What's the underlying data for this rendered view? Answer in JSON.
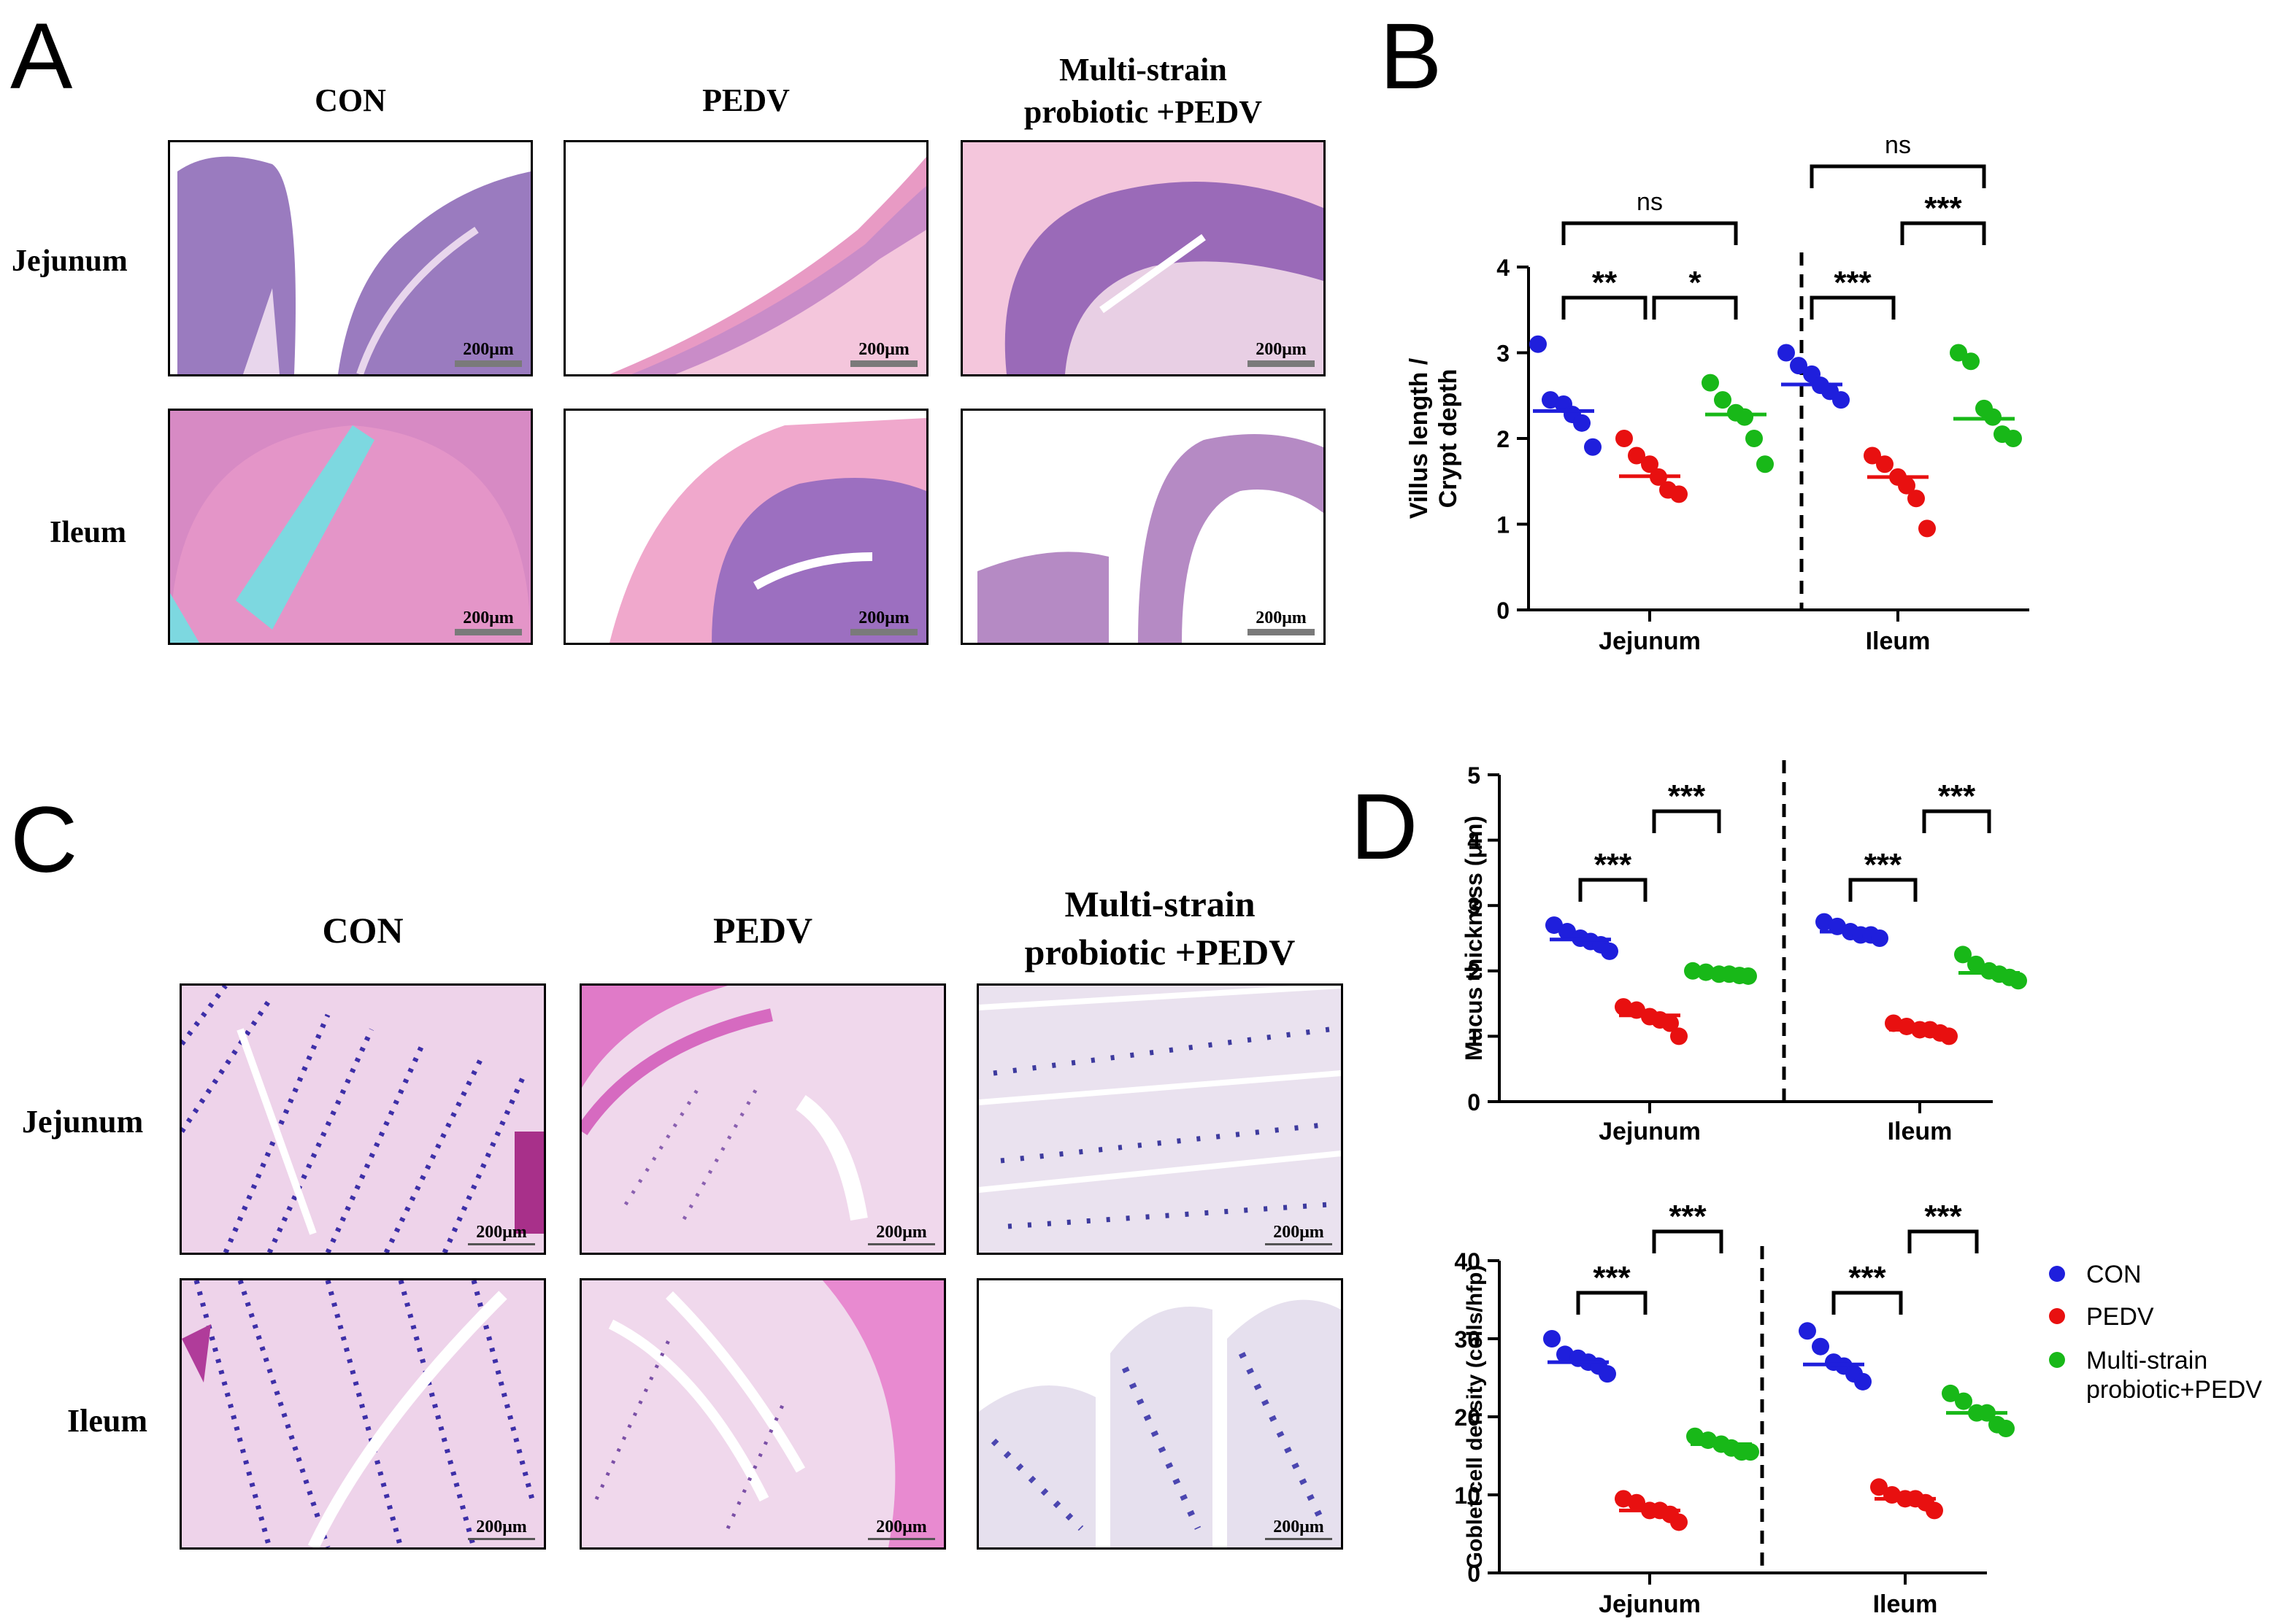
{
  "panels": {
    "A": "A",
    "B": "B",
    "C": "C",
    "D": "D"
  },
  "columns": [
    "CON",
    "PEDV",
    "Multi-strain probiotic +PEDV"
  ],
  "column_lines": [
    [
      "CON"
    ],
    [
      "PEDV"
    ],
    [
      "Multi-strain",
      "probiotic +PEDV"
    ]
  ],
  "rows": [
    "Jejunum",
    "Ileum"
  ],
  "scale_bar": "200μm",
  "colors": {
    "CON": "#1f1fdc",
    "PEDV": "#e81010",
    "probiotic": "#18b818",
    "he_stain": "#f4c6dc",
    "pas_stain": "#f3d7ec",
    "villus": "#8b63b0",
    "goblet": "#2b2b9a"
  },
  "icons": {
    "legend_marker": "filled-circle",
    "data_marker": "filled-circle",
    "median_marker": "horizontal-line"
  },
  "legend": {
    "placement": "right",
    "entries": [
      {
        "group": "CON",
        "lines": [
          "CON"
        ]
      },
      {
        "group": "PEDV",
        "lines": [
          "PEDV"
        ]
      },
      {
        "group": "probiotic",
        "lines": [
          "Multi-strain",
          "probiotic+PEDV"
        ]
      }
    ]
  },
  "chart_data": [
    {
      "id": "B",
      "type": "scatter",
      "ylabel_lines": [
        "Villus length /",
        "Crypt depth"
      ],
      "ylim": [
        0,
        4
      ],
      "yticks": [
        0,
        1,
        2,
        3,
        4
      ],
      "categories": [
        "Jejunum",
        "Ileum"
      ],
      "series": [
        {
          "group": "CON",
          "values": [
            [
              3.1,
              2.45,
              2.4,
              2.28,
              2.18,
              1.9
            ],
            [
              3.0,
              2.85,
              2.75,
              2.62,
              2.55,
              2.45
            ]
          ],
          "medians": [
            2.32,
            2.63
          ]
        },
        {
          "group": "PEDV",
          "values": [
            [
              2.0,
              1.8,
              1.7,
              1.55,
              1.4,
              1.35
            ],
            [
              1.8,
              1.7,
              1.55,
              1.45,
              1.3,
              0.95
            ]
          ],
          "medians": [
            1.56,
            1.55
          ]
        },
        {
          "group": "probiotic",
          "values": [
            [
              2.65,
              2.45,
              2.3,
              2.25,
              2.0,
              1.7
            ],
            [
              3.0,
              2.9,
              2.35,
              2.25,
              2.05,
              2.0
            ]
          ],
          "medians": [
            2.28,
            2.23
          ]
        }
      ],
      "comparisons": [
        {
          "category": 0,
          "from": 0,
          "to": 1,
          "label": "**",
          "level": 0
        },
        {
          "category": 0,
          "from": 1,
          "to": 2,
          "label": "*",
          "level": 0
        },
        {
          "category": 0,
          "from": 0,
          "to": 2,
          "label": "ns",
          "level": 1
        },
        {
          "category": 1,
          "from": 0,
          "to": 1,
          "label": "***",
          "level": 0
        },
        {
          "category": 1,
          "from": 1,
          "to": 2,
          "label": "***",
          "level": 1
        },
        {
          "category": 1,
          "from": 0,
          "to": 2,
          "label": "ns",
          "level": 2
        }
      ]
    },
    {
      "id": "D1",
      "type": "scatter",
      "ylabel_lines": [
        "Mucus thickness (μm)"
      ],
      "ylim": [
        0,
        5
      ],
      "yticks": [
        0,
        1,
        2,
        3,
        4,
        5
      ],
      "categories": [
        "Jejunum",
        "Ileum"
      ],
      "series": [
        {
          "group": "CON",
          "values": [
            [
              2.7,
              2.6,
              2.5,
              2.45,
              2.4,
              2.3
            ],
            [
              2.75,
              2.68,
              2.6,
              2.55,
              2.55,
              2.5
            ]
          ],
          "medians": [
            2.48,
            2.6
          ]
        },
        {
          "group": "PEDV",
          "values": [
            [
              1.45,
              1.4,
              1.3,
              1.25,
              1.2,
              1.0
            ],
            [
              1.2,
              1.15,
              1.1,
              1.1,
              1.05,
              1.0
            ]
          ],
          "medians": [
            1.32,
            1.1
          ]
        },
        {
          "group": "probiotic",
          "values": [
            [
              2.0,
              1.98,
              1.95,
              1.95,
              1.93,
              1.92
            ],
            [
              2.25,
              2.1,
              2.0,
              1.95,
              1.9,
              1.85
            ]
          ],
          "medians": [
            1.95,
            1.97
          ]
        }
      ],
      "comparisons": [
        {
          "category": 0,
          "from": 0,
          "to": 1,
          "label": "***",
          "level": 0
        },
        {
          "category": 0,
          "from": 1,
          "to": 2,
          "label": "***",
          "level": 1
        },
        {
          "category": 1,
          "from": 0,
          "to": 1,
          "label": "***",
          "level": 0
        },
        {
          "category": 1,
          "from": 1,
          "to": 2,
          "label": "***",
          "level": 1
        }
      ]
    },
    {
      "id": "D2",
      "type": "scatter",
      "ylabel_lines": [
        "Goblet cell density (cells/hfp)"
      ],
      "ylim": [
        0,
        40
      ],
      "yticks": [
        0,
        10,
        20,
        30,
        40
      ],
      "categories": [
        "Jejunum",
        "Ileum"
      ],
      "series": [
        {
          "group": "CON",
          "values": [
            [
              30.0,
              28.0,
              27.5,
              27.0,
              26.5,
              25.5
            ],
            [
              31.0,
              29.0,
              27.0,
              26.5,
              25.5,
              24.5
            ]
          ],
          "medians": [
            27.0,
            26.7
          ]
        },
        {
          "group": "PEDV",
          "values": [
            [
              9.5,
              9.0,
              8.0,
              8.0,
              7.5,
              6.5
            ],
            [
              11.0,
              10.0,
              9.5,
              9.5,
              9.0,
              8.0
            ]
          ],
          "medians": [
            8.0,
            9.5
          ]
        },
        {
          "group": "probiotic",
          "values": [
            [
              17.5,
              17.0,
              16.5,
              16.0,
              15.5,
              15.5
            ],
            [
              23.0,
              22.0,
              20.5,
              20.5,
              19.0,
              18.5
            ]
          ],
          "medians": [
            16.5,
            20.5
          ]
        }
      ],
      "comparisons": [
        {
          "category": 0,
          "from": 0,
          "to": 1,
          "label": "***",
          "level": 0
        },
        {
          "category": 0,
          "from": 1,
          "to": 2,
          "label": "***",
          "level": 1
        },
        {
          "category": 1,
          "from": 0,
          "to": 1,
          "label": "***",
          "level": 0
        },
        {
          "category": 1,
          "from": 1,
          "to": 2,
          "label": "***",
          "level": 1
        }
      ]
    }
  ]
}
